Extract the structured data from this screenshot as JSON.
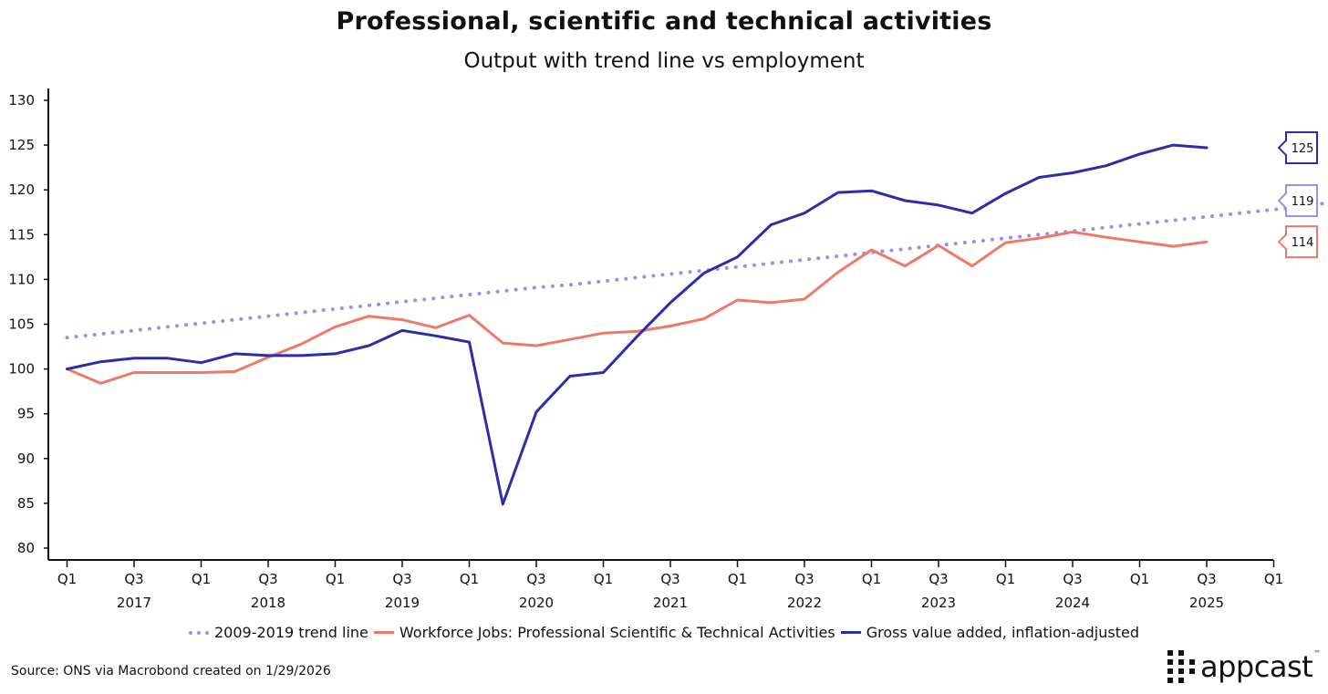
{
  "chart_data": {
    "type": "line",
    "title": "Professional, scientific and technical activities",
    "subtitle": "Output with trend line vs employment",
    "xlabel": "",
    "ylabel": "",
    "ylim": [
      80,
      130
    ],
    "y_ticks": [
      "80",
      "85",
      "90",
      "95",
      "100",
      "105",
      "110",
      "115",
      "120",
      "125",
      "130"
    ],
    "x_tick_labels": [
      "Q1",
      "Q3",
      "Q1",
      "Q3",
      "Q1",
      "Q3",
      "Q1",
      "Q3",
      "Q1",
      "Q3",
      "Q1",
      "Q3",
      "Q1",
      "Q3",
      "Q1",
      "Q3",
      "Q1",
      "Q3",
      "Q1"
    ],
    "year_labels": [
      "2017",
      "2018",
      "2019",
      "2020",
      "2021",
      "2022",
      "2023",
      "2024",
      "2025"
    ],
    "x_start": "2017 Q1",
    "x_end": "2026 Q1",
    "series": [
      {
        "name": "2009-2019 trend line",
        "color": "#9b8fe8",
        "style": "dotted",
        "start_quarter_index": 0,
        "values": [
          103.5,
          103.9,
          104.3,
          104.7,
          105.1,
          105.5,
          105.9,
          106.3,
          106.7,
          107.1,
          107.5,
          107.9,
          108.3,
          108.7,
          109.1,
          109.4,
          109.8,
          110.2,
          110.6,
          111.0,
          111.4,
          111.8,
          112.2,
          112.6,
          113.0,
          113.4,
          113.8,
          114.2,
          114.6,
          115.0,
          115.4,
          115.8,
          116.2,
          116.6,
          117.0,
          117.4,
          117.8,
          118.2,
          118.8
        ],
        "end_label": "119"
      },
      {
        "name": "Workforce Jobs: Professional Scientific & Technical Activities",
        "color": "#f07868",
        "style": "solid",
        "start_quarter_index": 0,
        "values": [
          100.0,
          98.4,
          99.6,
          99.6,
          99.6,
          99.7,
          101.3,
          102.8,
          104.7,
          105.9,
          105.5,
          104.6,
          106.0,
          102.9,
          102.6,
          103.3,
          104.0,
          104.2,
          104.8,
          105.6,
          107.7,
          107.4,
          107.8,
          110.8,
          113.3,
          111.5,
          113.8,
          111.5,
          114.1,
          114.6,
          115.3,
          114.7,
          114.2,
          113.7,
          114.2
        ],
        "end_label": "114"
      },
      {
        "name": "Gross value added, inflation-adjusted",
        "color": "#2a2fa8",
        "style": "solid",
        "start_quarter_index": 0,
        "values": [
          100.0,
          100.8,
          101.2,
          101.2,
          100.7,
          101.7,
          101.5,
          101.5,
          101.7,
          102.6,
          104.3,
          103.7,
          103.0,
          84.9,
          95.2,
          99.2,
          99.6,
          103.6,
          107.4,
          110.7,
          112.5,
          116.1,
          117.4,
          119.7,
          119.9,
          118.8,
          118.3,
          117.4,
          119.6,
          121.4,
          121.9,
          122.7,
          124.0,
          125.0,
          124.7
        ],
        "end_label": "125"
      }
    ]
  },
  "legend": {
    "trend": "2009-2019 trend line",
    "jobs": "Workforce Jobs: Professional Scientific & Technical Activities",
    "gva": "Gross value added, inflation-adjusted"
  },
  "source": "Source: ONS via Macrobond created on 1/29/2026",
  "logo": {
    "text": "appcast",
    "tm": "™"
  }
}
